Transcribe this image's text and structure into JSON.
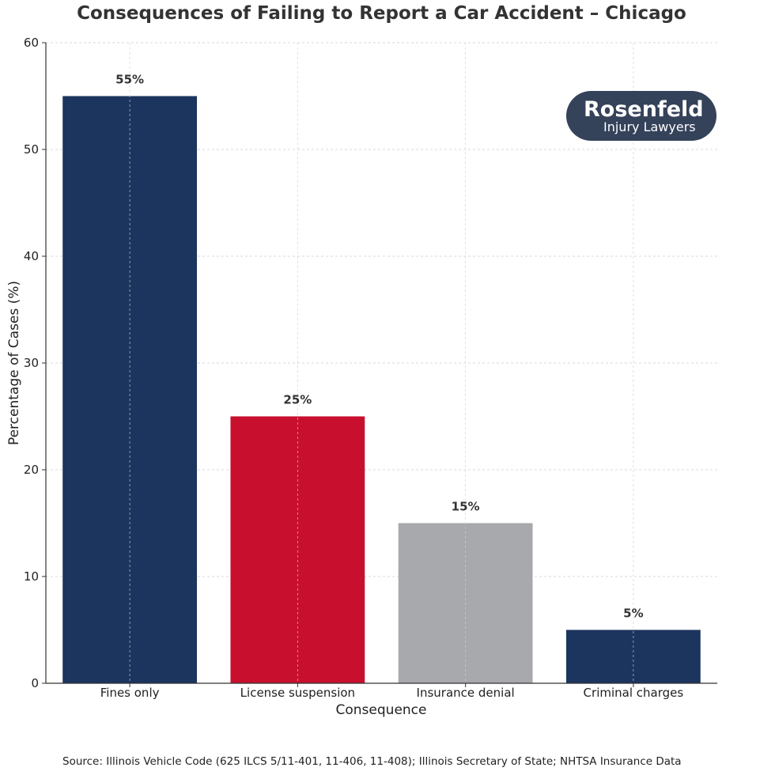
{
  "chart_data": {
    "type": "bar",
    "title": "Consequences of Failing to Report a Car Accident – Chicago",
    "xlabel": "Consequence",
    "ylabel": "Percentage of Cases (%)",
    "categories": [
      "Fines only",
      "License suspension",
      "Insurance denial",
      "Criminal charges"
    ],
    "values": [
      55,
      25,
      15,
      5
    ],
    "data_labels": [
      "55%",
      "25%",
      "15%",
      "5%"
    ],
    "bar_colors": [
      "#1c355e",
      "#c8102e",
      "#a7a9ac",
      "#1c355e"
    ],
    "ylim": [
      0,
      60
    ],
    "yticks": [
      0,
      10,
      20,
      30,
      40,
      50,
      60
    ],
    "grid": true,
    "legend": null
  },
  "logo": {
    "brand": "Rosenfeld",
    "tagline": "Injury Lawyers",
    "background": "#34425a"
  },
  "source_note": "Source: Illinois Vehicle Code (625 ILCS 5/11-401, 11-406, 11-408); Illinois Secretary of State; NHTSA Insurance Data"
}
